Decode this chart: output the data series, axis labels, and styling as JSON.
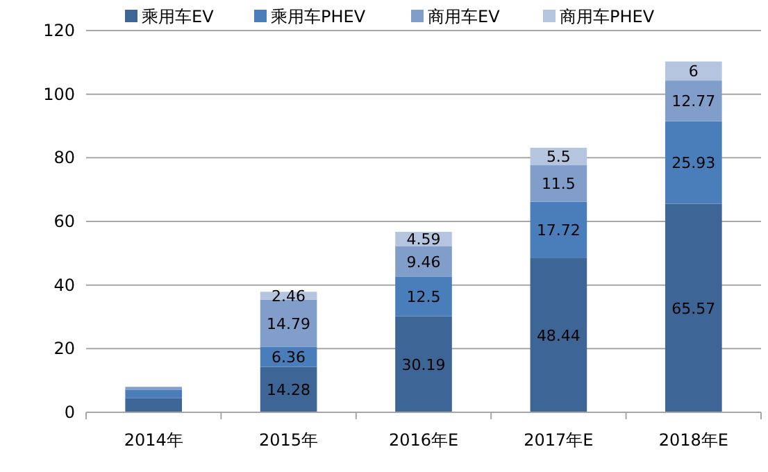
{
  "chart_data": {
    "type": "bar",
    "stacked": true,
    "categories": [
      "2014年",
      "2015年",
      "2016年E",
      "2017年E",
      "2018年E"
    ],
    "series": [
      {
        "name": "乘用车EV",
        "color": "#3d6596",
        "values": [
          4.5,
          14.28,
          30.19,
          48.44,
          65.57
        ],
        "value_labels": [
          null,
          "14.28",
          "30.19",
          "48.44",
          "65.57"
        ]
      },
      {
        "name": "乘用车PHEV",
        "color": "#4a7ebb",
        "values": [
          2.5,
          6.36,
          12.5,
          17.72,
          25.93
        ],
        "value_labels": [
          null,
          "6.36",
          "12.5",
          "17.72",
          "25.93"
        ]
      },
      {
        "name": "商用车EV",
        "color": "#819ecb",
        "values": [
          1,
          14.79,
          9.46,
          11.5,
          12.77
        ],
        "value_labels": [
          null,
          "14.79",
          "9.46",
          "11.5",
          "12.77"
        ]
      },
      {
        "name": "商用车PHEV",
        "color": "#b6c5df",
        "values": [
          null,
          2.46,
          4.59,
          5.5,
          6
        ],
        "value_labels": [
          null,
          "2.46",
          "4.59",
          "5.5",
          "6"
        ]
      }
    ],
    "ylim": [
      0,
      120
    ],
    "yticks": [
      0,
      20,
      40,
      60,
      80,
      100,
      120
    ],
    "grid": "y",
    "legend": "top"
  }
}
